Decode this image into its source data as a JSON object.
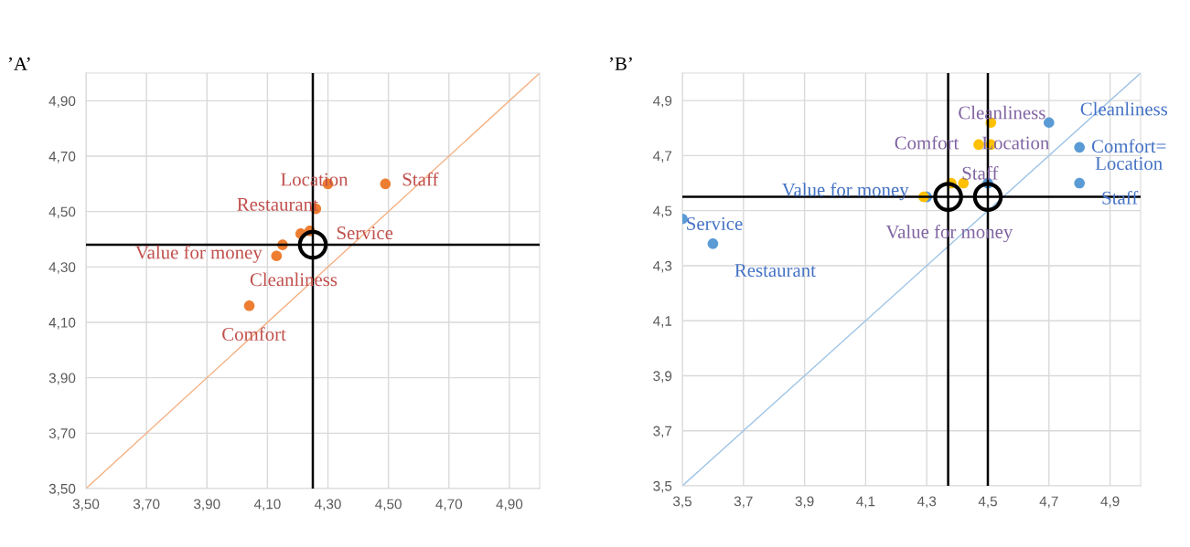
{
  "chart_data": [
    {
      "type": "scatter",
      "title": "’A’",
      "xlim": [
        3.5,
        5.0
      ],
      "ylim": [
        3.5,
        5.0
      ],
      "xticks": [
        {
          "value": 3.5,
          "label": "3,50"
        },
        {
          "value": 3.7,
          "label": "3,70"
        },
        {
          "value": 3.9,
          "label": "3,90"
        },
        {
          "value": 4.1,
          "label": "4,10"
        },
        {
          "value": 4.3,
          "label": "4,30"
        },
        {
          "value": 4.5,
          "label": "4,50"
        },
        {
          "value": 4.7,
          "label": "4,70"
        },
        {
          "value": 4.9,
          "label": "4,90"
        }
      ],
      "yticks": [
        {
          "value": 3.5,
          "label": "3,50"
        },
        {
          "value": 3.7,
          "label": "3,70"
        },
        {
          "value": 3.9,
          "label": "3,90"
        },
        {
          "value": 4.1,
          "label": "4,10"
        },
        {
          "value": 4.3,
          "label": "4,30"
        },
        {
          "value": 4.5,
          "label": "4,50"
        },
        {
          "value": 4.7,
          "label": "4,70"
        },
        {
          "value": 4.9,
          "label": "4,90"
        }
      ],
      "grid": true,
      "series": [
        {
          "type": "line",
          "color": "#f4b183",
          "x": [
            3.5,
            5.0
          ],
          "values": [
            3.5,
            5.0
          ]
        },
        {
          "color": "#ed7d31",
          "x": [
            4.49,
            4.3,
            4.26,
            4.21,
            4.24,
            4.15,
            4.13,
            4.04
          ],
          "values": [
            4.6,
            4.6,
            4.51,
            4.42,
            4.43,
            4.38,
            4.34,
            4.16
          ],
          "value_labels": [
            "Staff",
            "Location",
            "Restaurant",
            null,
            "Service",
            "Cleanliness",
            "Value for money",
            "Comfort"
          ]
        },
        {
          "color": "#000000",
          "marker": "circle",
          "x": [
            4.25
          ],
          "values": [
            4.38
          ]
        }
      ],
      "ref_lines": [
        {
          "axis": "x",
          "value": 4.25,
          "color": "#000000"
        },
        {
          "axis": "y",
          "value": 4.38,
          "color": "#000000"
        }
      ]
    },
    {
      "type": "scatter",
      "title": "’B’",
      "xlim": [
        3.5,
        5.0
      ],
      "ylim": [
        3.5,
        5.0
      ],
      "xticks": [
        {
          "value": 3.5,
          "label": "3,5"
        },
        {
          "value": 3.7,
          "label": "3,7"
        },
        {
          "value": 3.9,
          "label": "3,9"
        },
        {
          "value": 4.1,
          "label": "4,1"
        },
        {
          "value": 4.3,
          "label": "4,3"
        },
        {
          "value": 4.5,
          "label": "4,5"
        },
        {
          "value": 4.7,
          "label": "4,7"
        },
        {
          "value": 4.9,
          "label": "4,9"
        }
      ],
      "yticks": [
        {
          "value": 3.5,
          "label": "3,5"
        },
        {
          "value": 3.7,
          "label": "3,7"
        },
        {
          "value": 3.9,
          "label": "3,9"
        },
        {
          "value": 4.1,
          "label": "4,1"
        },
        {
          "value": 4.3,
          "label": "4,3"
        },
        {
          "value": 4.5,
          "label": "4,5"
        },
        {
          "value": 4.7,
          "label": "4,7"
        },
        {
          "value": 4.9,
          "label": "4,9"
        }
      ],
      "grid": true,
      "series": [
        {
          "type": "line",
          "color": "#9dc3e6",
          "x": [
            3.5,
            5.0
          ],
          "values": [
            3.5,
            5.0
          ]
        },
        {
          "color": "#5b9bd5",
          "x": [
            3.5,
            3.6,
            4.7,
            4.8,
            4.8,
            4.5,
            4.3
          ],
          "values": [
            4.47,
            4.38,
            4.82,
            4.73,
            4.6,
            4.6,
            4.55
          ],
          "value_labels": [
            "Service",
            "Restaurant",
            "Cleanliness",
            "Comfort=\nLocation",
            "Staff",
            null,
            "Value for money"
          ]
        },
        {
          "color": "#ffc000",
          "x": [
            4.51,
            4.47,
            4.51,
            4.38,
            4.42,
            4.29
          ],
          "values": [
            4.82,
            4.74,
            4.74,
            4.6,
            4.6,
            4.55
          ],
          "value_labels": [
            "Cleanliness",
            "Comfort",
            "Location",
            null,
            "Staff",
            "Value for money"
          ]
        },
        {
          "color": "#000000",
          "marker": "circle",
          "x": [
            4.37,
            4.5
          ],
          "values": [
            4.55,
            4.55
          ]
        }
      ],
      "ref_lines": [
        {
          "axis": "x",
          "value": 4.37,
          "color": "#000000"
        },
        {
          "axis": "x",
          "value": 4.5,
          "color": "#000000"
        },
        {
          "axis": "y",
          "value": 4.55,
          "color": "#000000"
        }
      ]
    }
  ]
}
